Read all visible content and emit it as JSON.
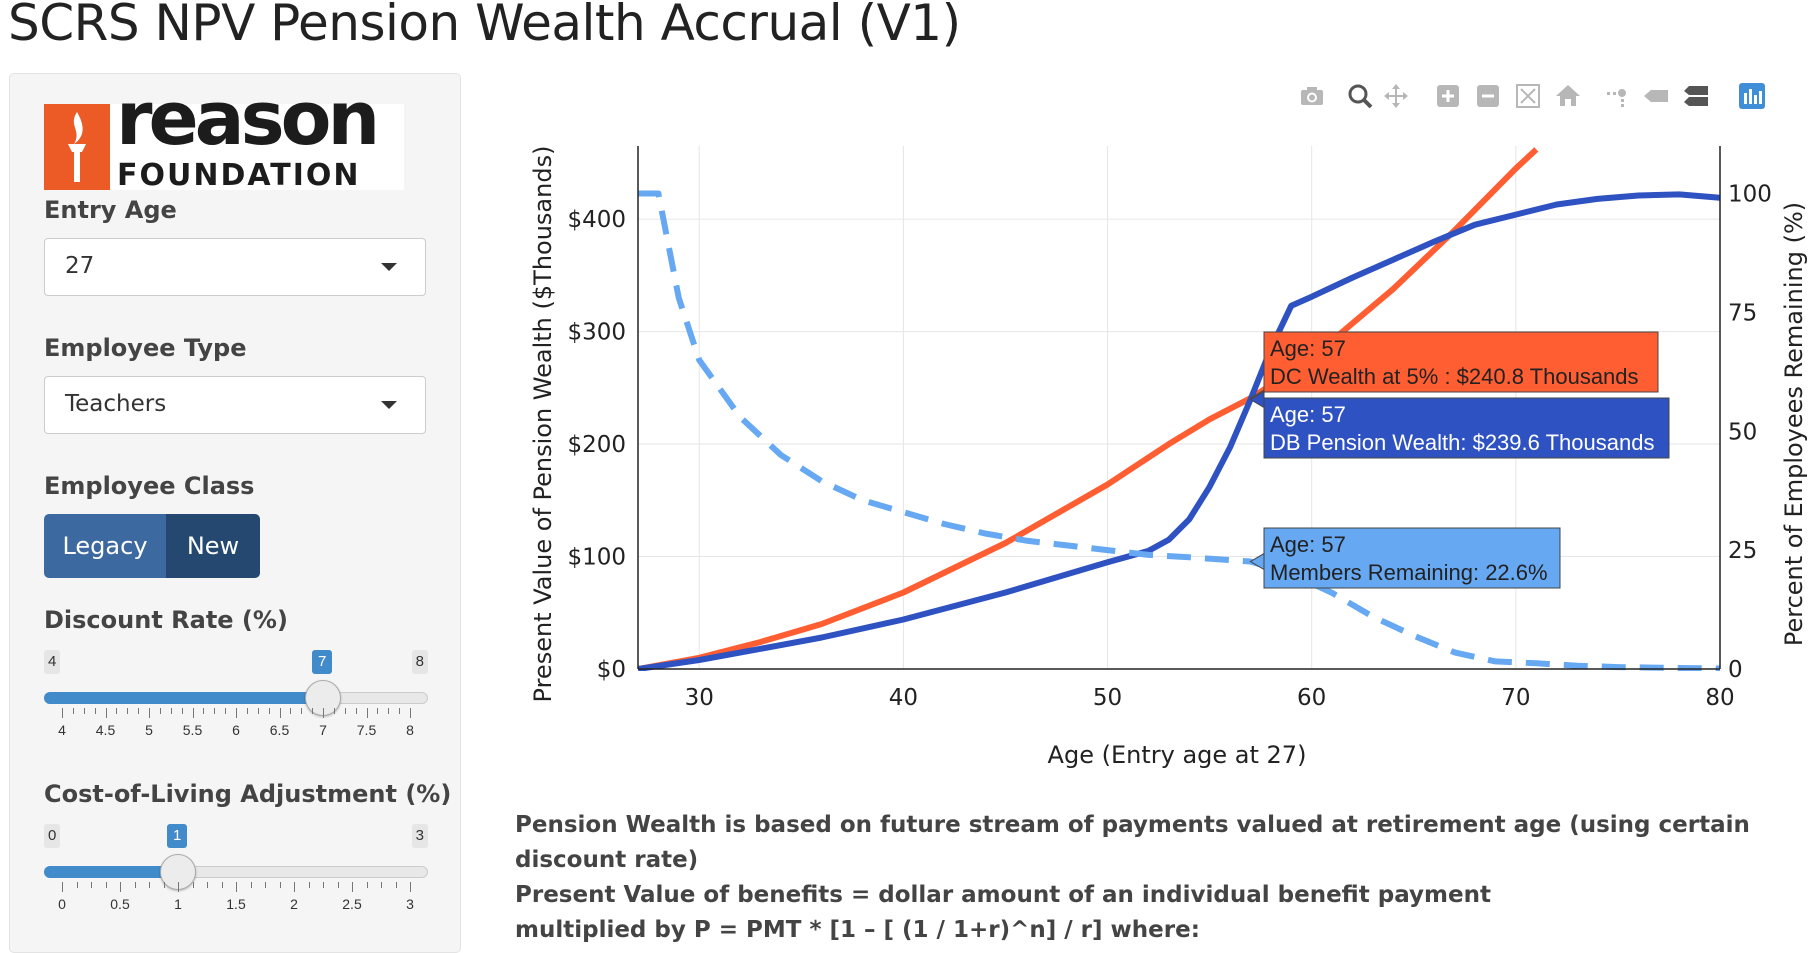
{
  "page_title": "SCRS NPV Pension Wealth Accrual (V1)",
  "logo": {
    "word1": "reason",
    "word2": "FOUNDATION",
    "brand_color": "#ec5a26"
  },
  "sidebar": {
    "entry_age": {
      "label": "Entry Age",
      "value": "27"
    },
    "employee_type": {
      "label": "Employee Type",
      "value": "Teachers"
    },
    "employee_class": {
      "label": "Employee Class",
      "options": [
        "Legacy",
        "New"
      ]
    },
    "discount_rate": {
      "label": "Discount Rate (%)",
      "min": "4",
      "max": "8",
      "value": "7",
      "min_num": 4,
      "max_num": 8,
      "value_num": 7,
      "ticks": [
        "4",
        "4.5",
        "5",
        "5.5",
        "6",
        "6.5",
        "7",
        "7.5",
        "8"
      ]
    },
    "cola": {
      "label": "Cost-of-Living Adjustment (%)",
      "min": "0",
      "max": "3",
      "value": "1",
      "min_num": 0,
      "max_num": 3,
      "value_num": 1,
      "ticks": [
        "0",
        "0.5",
        "1",
        "1.5",
        "2",
        "2.5",
        "3"
      ]
    }
  },
  "toolbar": {
    "icons": [
      "camera-icon",
      "zoom-icon",
      "pan-icon",
      "zoom-in-icon",
      "zoom-out-icon",
      "autoscale-icon",
      "reset-axes-icon",
      "spike-lines-icon",
      "hover-closest-icon",
      "hover-compare-icon",
      "plotly-logo-icon"
    ]
  },
  "chart_data": {
    "type": "line",
    "xlabel": "Age (Entry age at 27)",
    "ylabel_left": "Present Value of Pension Wealth ($Thousands)",
    "ylabel_right": "Percent of Employees Remaining (%)",
    "xlim": [
      27,
      80
    ],
    "ylim_left": [
      0,
      465
    ],
    "ylim_right": [
      0,
      110
    ],
    "x_ticks": [
      "30",
      "40",
      "50",
      "60",
      "70",
      "80"
    ],
    "y_left_ticks": [
      "$0",
      "$100",
      "$200",
      "$300",
      "$400"
    ],
    "y_right_ticks": [
      "0",
      "25",
      "50",
      "75",
      "100"
    ],
    "grid": true,
    "series": [
      {
        "color": "#ff5e33",
        "style": "solid",
        "axis": "left",
        "points": [
          [
            27,
            0
          ],
          [
            30,
            10
          ],
          [
            33,
            24
          ],
          [
            36,
            40
          ],
          [
            40,
            68
          ],
          [
            45,
            112
          ],
          [
            50,
            164
          ],
          [
            53,
            200
          ],
          [
            55,
            222
          ],
          [
            57,
            240.8
          ],
          [
            59,
            264
          ],
          [
            61,
            292
          ],
          [
            64,
            338
          ],
          [
            67,
            390
          ],
          [
            70,
            445
          ],
          [
            71,
            462
          ]
        ]
      },
      {
        "color": "#2f52c2",
        "style": "solid",
        "axis": "left",
        "points": [
          [
            27,
            0
          ],
          [
            30,
            8
          ],
          [
            33,
            18
          ],
          [
            36,
            28
          ],
          [
            40,
            44
          ],
          [
            45,
            68
          ],
          [
            50,
            95
          ],
          [
            52,
            105
          ],
          [
            53,
            115
          ],
          [
            54,
            133
          ],
          [
            55,
            162
          ],
          [
            56,
            197
          ],
          [
            57,
            239.6
          ],
          [
            58,
            285
          ],
          [
            59,
            323
          ],
          [
            60,
            331
          ],
          [
            62,
            348
          ],
          [
            64,
            364
          ],
          [
            66,
            380
          ],
          [
            68,
            395
          ],
          [
            70,
            404
          ],
          [
            72,
            413
          ],
          [
            74,
            418
          ],
          [
            76,
            421
          ],
          [
            78,
            422
          ],
          [
            80,
            419
          ]
        ]
      },
      {
        "color": "#66a8f2",
        "style": "dashed",
        "axis": "right",
        "points": [
          [
            27,
            100
          ],
          [
            28,
            100
          ],
          [
            29,
            78
          ],
          [
            30,
            65
          ],
          [
            32,
            53
          ],
          [
            34,
            45
          ],
          [
            36,
            39.5
          ],
          [
            38,
            35.5
          ],
          [
            40,
            33
          ],
          [
            42,
            30.5
          ],
          [
            44,
            28.5
          ],
          [
            46,
            27
          ],
          [
            48,
            26
          ],
          [
            50,
            25
          ],
          [
            52,
            24
          ],
          [
            54,
            23.5
          ],
          [
            57,
            22.6
          ],
          [
            59,
            20
          ],
          [
            61,
            16
          ],
          [
            63,
            11
          ],
          [
            65,
            7
          ],
          [
            67,
            3.5
          ],
          [
            69,
            1.6
          ],
          [
            71,
            1.2
          ],
          [
            73,
            0.7
          ],
          [
            75,
            0.4
          ],
          [
            78,
            0.2
          ],
          [
            80,
            0.1
          ]
        ]
      }
    ],
    "hover_labels": [
      {
        "line1": "Age: 57",
        "line2": "DC Wealth at 5% : $240.8 Thousands",
        "bg": "#ff5e33",
        "color": "#222"
      },
      {
        "line1": "Age: 57",
        "line2": "DB Pension Wealth: $239.6 Thousands",
        "bg": "#2f52c2",
        "color": "#ffffff"
      },
      {
        "line1": "Age: 57",
        "line2": "Members Remaining: 22.6%",
        "bg": "#66a8f2",
        "color": "#222"
      }
    ]
  },
  "description": {
    "line1": "Pension Wealth is based on future stream of payments valued at retirement age (using certain discount rate)",
    "line2": "Present Value of benefits = dollar amount of an individual benefit payment",
    "line3": "multiplied by P = PMT * [1 – [ (1 / 1+r)^n] / r] where:"
  }
}
